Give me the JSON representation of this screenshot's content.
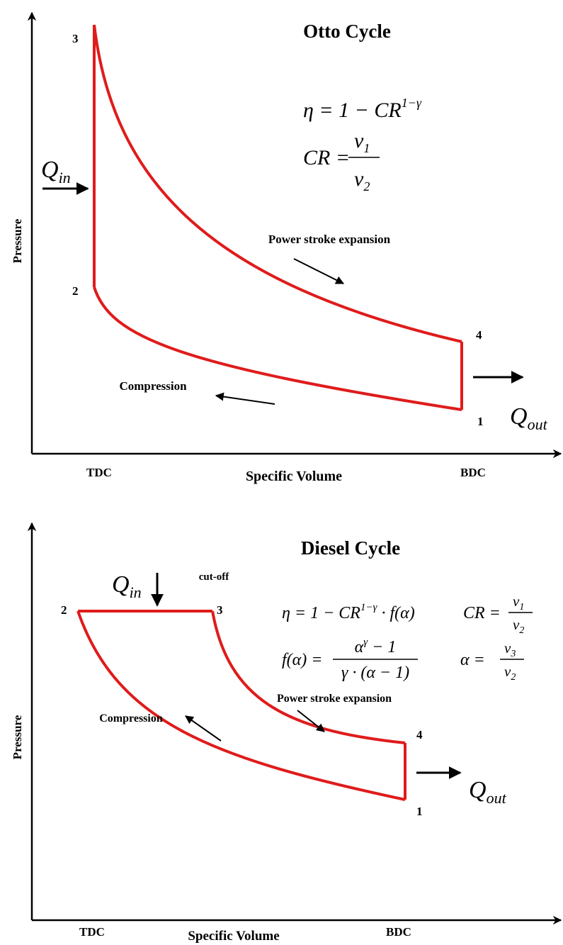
{
  "otto": {
    "title": "Otto Cycle",
    "axes": {
      "y": "Pressure",
      "x": "Specific Volume",
      "x_left": "TDC",
      "x_right": "BDC"
    },
    "state_labels": [
      "1",
      "2",
      "3",
      "4"
    ],
    "processes": {
      "expansion": "Power stroke expansion",
      "compression": "Compression"
    },
    "q_in": {
      "base": "Q",
      "sub": "in"
    },
    "q_out": {
      "base": "Q",
      "sub": "out"
    },
    "formulas": {
      "efficiency": {
        "lhs": "η = 1 − CR",
        "sup": "1−γ"
      },
      "compression_ratio": {
        "lhs": "CR =",
        "num": "v",
        "num_sub": "1",
        "den": "v",
        "den_sub": "2"
      }
    }
  },
  "diesel": {
    "title": "Diesel Cycle",
    "axes": {
      "y": "Pressure",
      "x": "Specific Volume",
      "x_left": "TDC",
      "x_right": "BDC"
    },
    "state_labels": [
      "1",
      "2",
      "3",
      "4"
    ],
    "cut_off": "cut-off",
    "processes": {
      "expansion": "Power stroke expansion",
      "compression": "Compression"
    },
    "q_in": {
      "base": "Q",
      "sub": "in"
    },
    "q_out": {
      "base": "Q",
      "sub": "out"
    },
    "formulas": {
      "efficiency": {
        "lhs": "η = 1 − CR",
        "sup": "1−γ",
        "rhs": " · f(α)"
      },
      "compression_ratio": {
        "lhs": "CR =",
        "num": "v",
        "num_sub": "1",
        "den": "v",
        "den_sub": "2"
      },
      "f_alpha": {
        "lhs": "f(α) =",
        "num": "α",
        "num_sup": "γ",
        "num_rest": " − 1",
        "den": "γ · (α − 1)"
      },
      "alpha": {
        "lhs": "α =",
        "num": "v",
        "num_sub": "3",
        "den": "v",
        "den_sub": "2"
      }
    }
  }
}
